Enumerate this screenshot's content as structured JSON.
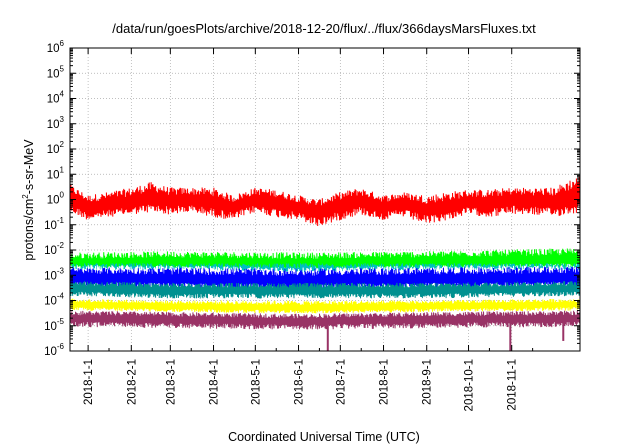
{
  "chart_data": {
    "type": "line",
    "title": "/data/run/goesPlots/archive/2018-12-20/flux/../flux/366daysMarsFluxes.txt",
    "xlabel": "Coordinated Universal Time (UTC)",
    "ylabel": "protons/cm²-s-sr-MeV",
    "ylabel_parts": {
      "prefix": "protons/cm",
      "sup": "2",
      "suffix": "-s-sr-MeV"
    },
    "yscale": "log",
    "ylim": [
      1e-06,
      1000000.0
    ],
    "xlim": [
      "2017-12-19",
      "2018-12-20"
    ],
    "grid": true,
    "legend": "none",
    "y_ticks": [
      {
        "value": 1e-06,
        "base": "10",
        "exp": "-6"
      },
      {
        "value": 1e-05,
        "base": "10",
        "exp": "-5"
      },
      {
        "value": 0.0001,
        "base": "10",
        "exp": "-4"
      },
      {
        "value": 0.001,
        "base": "10",
        "exp": "-3"
      },
      {
        "value": 0.01,
        "base": "10",
        "exp": "-2"
      },
      {
        "value": 0.1,
        "base": "10",
        "exp": "-1"
      },
      {
        "value": 1.0,
        "base": "10",
        "exp": "0"
      },
      {
        "value": 10.0,
        "base": "10",
        "exp": "1"
      },
      {
        "value": 100.0,
        "base": "10",
        "exp": "2"
      },
      {
        "value": 1000.0,
        "base": "10",
        "exp": "3"
      },
      {
        "value": 10000.0,
        "base": "10",
        "exp": "4"
      },
      {
        "value": 100000.0,
        "base": "10",
        "exp": "5"
      },
      {
        "value": 1000000.0,
        "base": "10",
        "exp": "6"
      }
    ],
    "x_ticks": [
      {
        "date": "2018-01-01",
        "label": "2018-1-1"
      },
      {
        "date": "2018-02-01",
        "label": "2018-2-1"
      },
      {
        "date": "2018-03-01",
        "label": "2018-3-1"
      },
      {
        "date": "2018-04-01",
        "label": "2018-4-1"
      },
      {
        "date": "2018-05-01",
        "label": "2018-5-1"
      },
      {
        "date": "2018-06-01",
        "label": "2018-6-1"
      },
      {
        "date": "2018-07-01",
        "label": "2018-7-1"
      },
      {
        "date": "2018-08-01",
        "label": "2018-8-1"
      },
      {
        "date": "2018-09-01",
        "label": "2018-9-1"
      },
      {
        "date": "2018-10-01",
        "label": "2018-10-1"
      },
      {
        "date": "2018-11-01",
        "label": "2018-11-1"
      }
    ],
    "series": [
      {
        "color": "#ff0000",
        "x": [
          "2017-12-19",
          "2018-01-01",
          "2018-01-15",
          "2018-02-01",
          "2018-02-15",
          "2018-03-01",
          "2018-03-15",
          "2018-04-01",
          "2018-04-15",
          "2018-05-01",
          "2018-05-15",
          "2018-06-01",
          "2018-06-15",
          "2018-07-01",
          "2018-07-15",
          "2018-08-01",
          "2018-08-15",
          "2018-09-01",
          "2018-09-15",
          "2018-10-01",
          "2018-10-15",
          "2018-11-01",
          "2018-11-15",
          "2018-12-01",
          "2018-12-20"
        ],
        "y": [
          1.2,
          0.5,
          0.6,
          0.8,
          1.2,
          0.9,
          1.0,
          0.8,
          0.5,
          1.0,
          0.8,
          0.5,
          0.35,
          0.6,
          0.9,
          0.5,
          0.7,
          0.4,
          0.5,
          0.8,
          0.7,
          1.0,
          0.9,
          0.8,
          1.5
        ],
        "y_low": [
          0.3,
          0.15,
          0.2,
          0.25,
          0.3,
          0.25,
          0.3,
          0.2,
          0.15,
          0.3,
          0.2,
          0.15,
          0.08,
          0.15,
          0.25,
          0.15,
          0.2,
          0.1,
          0.15,
          0.25,
          0.2,
          0.25,
          0.25,
          0.2,
          0.3
        ],
        "y_high": [
          4,
          1.5,
          2,
          3,
          5,
          3,
          3,
          3,
          1.5,
          3,
          2.5,
          1.5,
          1,
          2,
          3,
          1.5,
          2,
          1.5,
          2,
          2.5,
          2.5,
          3,
          3,
          3,
          10
        ]
      },
      {
        "color": "#00ff00",
        "x": [
          "2017-12-19",
          "2018-03-01",
          "2018-06-01",
          "2018-09-01",
          "2018-12-20"
        ],
        "y": [
          0.003,
          0.0035,
          0.003,
          0.0035,
          0.004
        ],
        "y_low": [
          0.0015,
          0.0015,
          0.0015,
          0.0015,
          0.002
        ],
        "y_high": [
          0.008,
          0.009,
          0.008,
          0.009,
          0.012
        ]
      },
      {
        "color": "#00c0c0",
        "x": [
          "2017-12-19",
          "2018-03-01",
          "2018-06-01",
          "2018-09-01",
          "2018-12-20"
        ],
        "y": [
          0.0015,
          0.0015,
          0.0013,
          0.0015,
          0.0015
        ],
        "y_low": [
          0.0007,
          0.0007,
          0.0006,
          0.0007,
          0.0007
        ],
        "y_high": [
          0.003,
          0.003,
          0.003,
          0.003,
          0.003
        ]
      },
      {
        "color": "#ffffff",
        "x": [
          "2017-12-19",
          "2018-03-01",
          "2018-06-01",
          "2018-09-01",
          "2018-12-20"
        ],
        "y": [
          0.0012,
          0.0012,
          0.001,
          0.0012,
          0.0012
        ],
        "y_low": [
          0.0006,
          0.0006,
          0.0005,
          0.0006,
          0.0006
        ],
        "y_high": [
          0.0025,
          0.0025,
          0.002,
          0.0025,
          0.0025
        ]
      },
      {
        "color": "#0000ff",
        "x": [
          "2017-12-19",
          "2018-03-01",
          "2018-06-01",
          "2018-09-01",
          "2018-12-20"
        ],
        "y": [
          0.0008,
          0.0007,
          0.0006,
          0.0007,
          0.0008
        ],
        "y_low": [
          0.0003,
          0.0003,
          0.00025,
          0.0003,
          0.0003
        ],
        "y_high": [
          0.002,
          0.002,
          0.0018,
          0.002,
          0.0022
        ]
      },
      {
        "color": "#009090",
        "x": [
          "2017-12-19",
          "2018-03-01",
          "2018-06-01",
          "2018-09-01",
          "2018-12-20"
        ],
        "y": [
          0.0003,
          0.00025,
          0.00025,
          0.00025,
          0.0003
        ],
        "y_low": [
          0.00015,
          0.00012,
          0.00012,
          0.00012,
          0.00015
        ],
        "y_high": [
          0.0006,
          0.0005,
          0.0005,
          0.0005,
          0.0006
        ]
      },
      {
        "color": "#ffff00",
        "x": [
          "2017-12-19",
          "2018-03-01",
          "2018-06-01",
          "2018-09-01",
          "2018-12-20"
        ],
        "y": [
          7e-05,
          6e-05,
          5e-05,
          6e-05,
          7e-05
        ],
        "y_low": [
          4e-05,
          3.5e-05,
          3e-05,
          3.5e-05,
          4e-05
        ],
        "y_high": [
          0.00012,
          0.0001,
          0.0001,
          0.0001,
          0.00012
        ]
      },
      {
        "color": "#993366",
        "x": [
          "2017-12-19",
          "2018-03-01",
          "2018-06-01",
          "2018-09-01",
          "2018-12-20"
        ],
        "y": [
          2e-05,
          1.8e-05,
          1.5e-05,
          1.8e-05,
          2e-05
        ],
        "y_low": [
          9e-06,
          8e-06,
          7e-06,
          8e-06,
          9e-06
        ],
        "y_high": [
          4e-05,
          3.5e-05,
          3e-05,
          3.5e-05,
          4e-05
        ],
        "dips": [
          {
            "date": "2018-06-22",
            "y": 1e-06
          },
          {
            "date": "2018-10-31",
            "y": 1e-06
          },
          {
            "date": "2018-12-08",
            "y": 2.5e-06
          }
        ]
      }
    ]
  }
}
